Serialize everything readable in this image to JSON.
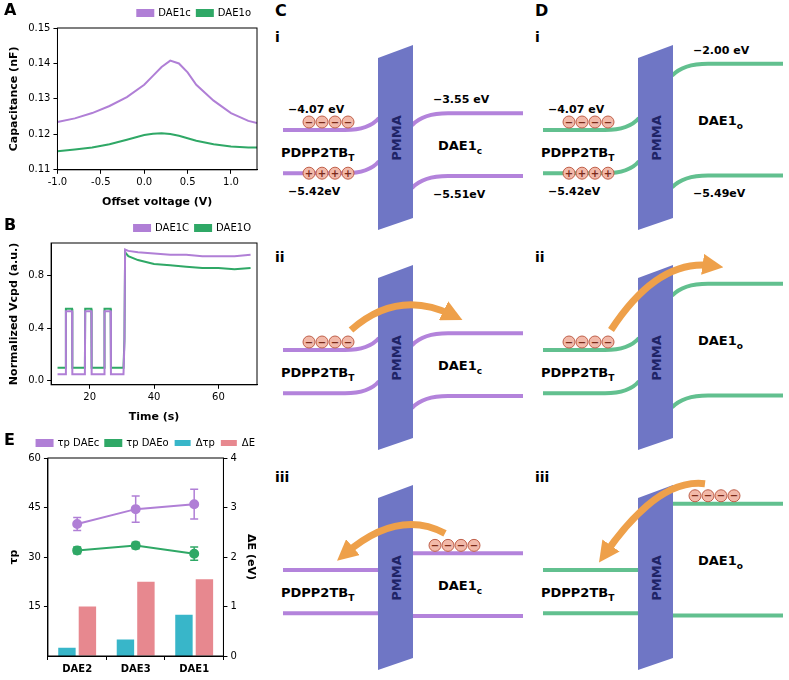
{
  "chart_data": [
    {
      "label": "A",
      "type": "line",
      "x_label": "Offset voltage (V)",
      "y_label": "Capacitance (nF)",
      "x": [
        -1.0,
        -0.8,
        -0.6,
        -0.4,
        -0.2,
        0.0,
        0.1,
        0.2,
        0.3,
        0.4,
        0.5,
        0.6,
        0.8,
        1.0,
        1.2,
        1.3
      ],
      "series": [
        {
          "name": "DAE1c",
          "color": "#b07fd6",
          "values": [
            0.1235,
            0.1245,
            0.126,
            0.128,
            0.1305,
            0.134,
            0.1365,
            0.139,
            0.1408,
            0.14,
            0.1375,
            0.134,
            0.1295,
            0.126,
            0.1238,
            0.1232
          ]
        },
        {
          "name": "DAE1o",
          "color": "#2fa866",
          "values": [
            0.1152,
            0.1157,
            0.1163,
            0.1172,
            0.1185,
            0.1198,
            0.1202,
            0.1203,
            0.1201,
            0.1196,
            0.1189,
            0.1182,
            0.1172,
            0.1166,
            0.1163,
            0.1163
          ]
        }
      ],
      "xlim": [
        -1.0,
        1.3
      ],
      "xticks": [
        {
          "value": -1,
          "label": "-1.0"
        },
        {
          "value": -0.5,
          "label": "-0.5"
        },
        {
          "value": 0,
          "label": "0.0"
        },
        {
          "value": 0.5,
          "label": "0.5"
        },
        {
          "value": 1,
          "label": "1.0"
        }
      ],
      "ylim": [
        0.11,
        0.15
      ],
      "yticks": [
        0.11,
        0.12,
        0.13,
        0.14,
        0.15
      ],
      "grid": false,
      "legend": "top-right"
    },
    {
      "label": "B",
      "type": "line",
      "x_label": "Time (s)",
      "y_label": "Normalized Vcpd (a.u.)",
      "x": [
        10,
        12.5,
        12.6,
        14.5,
        14.6,
        18.5,
        18.6,
        20.5,
        20.6,
        24.5,
        24.6,
        26.5,
        26.6,
        30.5,
        30.8,
        31,
        32,
        35,
        40,
        45,
        50,
        55,
        60,
        65,
        70
      ],
      "series": [
        {
          "name": "DAE1C",
          "color": "#b07fd6",
          "values": [
            0.05,
            0.05,
            0.53,
            0.53,
            0.05,
            0.05,
            0.53,
            0.53,
            0.05,
            0.05,
            0.53,
            0.53,
            0.05,
            0.05,
            0.3,
            1.0,
            0.99,
            0.98,
            0.97,
            0.96,
            0.96,
            0.95,
            0.95,
            0.95,
            0.96
          ]
        },
        {
          "name": "DAE1O",
          "color": "#2fa866",
          "values": [
            0.1,
            0.1,
            0.55,
            0.55,
            0.1,
            0.1,
            0.55,
            0.55,
            0.1,
            0.1,
            0.55,
            0.55,
            0.1,
            0.1,
            0.32,
            0.98,
            0.95,
            0.92,
            0.89,
            0.88,
            0.87,
            0.86,
            0.86,
            0.85,
            0.86
          ]
        }
      ],
      "xlim": [
        8,
        72
      ],
      "xticks": [
        20,
        40,
        60
      ],
      "ylim": [
        -0.03,
        1.05
      ],
      "yticks": [
        {
          "value": 0,
          "label": "0.0"
        },
        {
          "value": 0.4,
          "label": "0.4"
        },
        {
          "value": 0.8,
          "label": "0.8"
        }
      ],
      "grid": false,
      "legend": "top-right"
    },
    {
      "label": "E",
      "type": "bar",
      "y_label": "τp",
      "y2_label": "ΔE (eV)",
      "categories": [
        "DAE2",
        "DAE3",
        "DAE1"
      ],
      "series": [
        {
          "name": "τp DAEc",
          "type": "line",
          "color": "#b07fd6",
          "values": [
            40,
            44.5,
            46
          ],
          "errors": [
            2,
            4,
            4.5
          ]
        },
        {
          "name": "τp DAEo",
          "type": "line",
          "color": "#2fa866",
          "values": [
            32,
            33.5,
            31
          ],
          "errors": [
            1,
            1,
            2
          ]
        },
        {
          "name": "Δτp",
          "type": "bar",
          "color": "#38b6c9",
          "values": [
            2.5,
            5,
            12.5
          ]
        },
        {
          "name": "ΔE",
          "type": "bar",
          "color": "#e7888f",
          "axis": "y2",
          "values": [
            1.0,
            1.5,
            1.55
          ]
        }
      ],
      "ylim": [
        0,
        60
      ],
      "yticks": [
        15,
        30,
        45,
        60
      ],
      "y2lim": [
        0,
        4
      ],
      "y2ticks": [
        0,
        1,
        2,
        3,
        4
      ],
      "grid": false,
      "legend": "top-right"
    }
  ],
  "diagrams": [
    {
      "label": "C",
      "color": "#b383db",
      "donor": "PDPP2TBT",
      "barrier": "PMMA",
      "acceptor": "DAE1c",
      "donor_levels": [
        {
          "value": -4.07,
          "label": "−4.07 eV"
        },
        {
          "value": -5.42,
          "label": "−5.42eV"
        }
      ],
      "acceptor_levels": [
        {
          "value": -3.55,
          "label": "−3.55 eV"
        },
        {
          "value": -5.51,
          "label": "−5.51eV"
        }
      ],
      "steps": [
        "i",
        "ii",
        "iii"
      ]
    },
    {
      "label": "D",
      "color": "#62c08f",
      "donor": "PDPP2TBT",
      "barrier": "PMMA",
      "acceptor": "DAE1o",
      "donor_levels": [
        {
          "value": -4.07,
          "label": "−4.07 eV"
        },
        {
          "value": -5.42,
          "label": "−5.42eV"
        }
      ],
      "acceptor_levels": [
        {
          "value": -2.0,
          "label": "−2.00 eV"
        },
        {
          "value": -5.49,
          "label": "−5.49eV"
        }
      ],
      "steps": [
        "i",
        "ii",
        "iii"
      ]
    }
  ],
  "charges": {
    "electron": "−",
    "hole": "+"
  }
}
